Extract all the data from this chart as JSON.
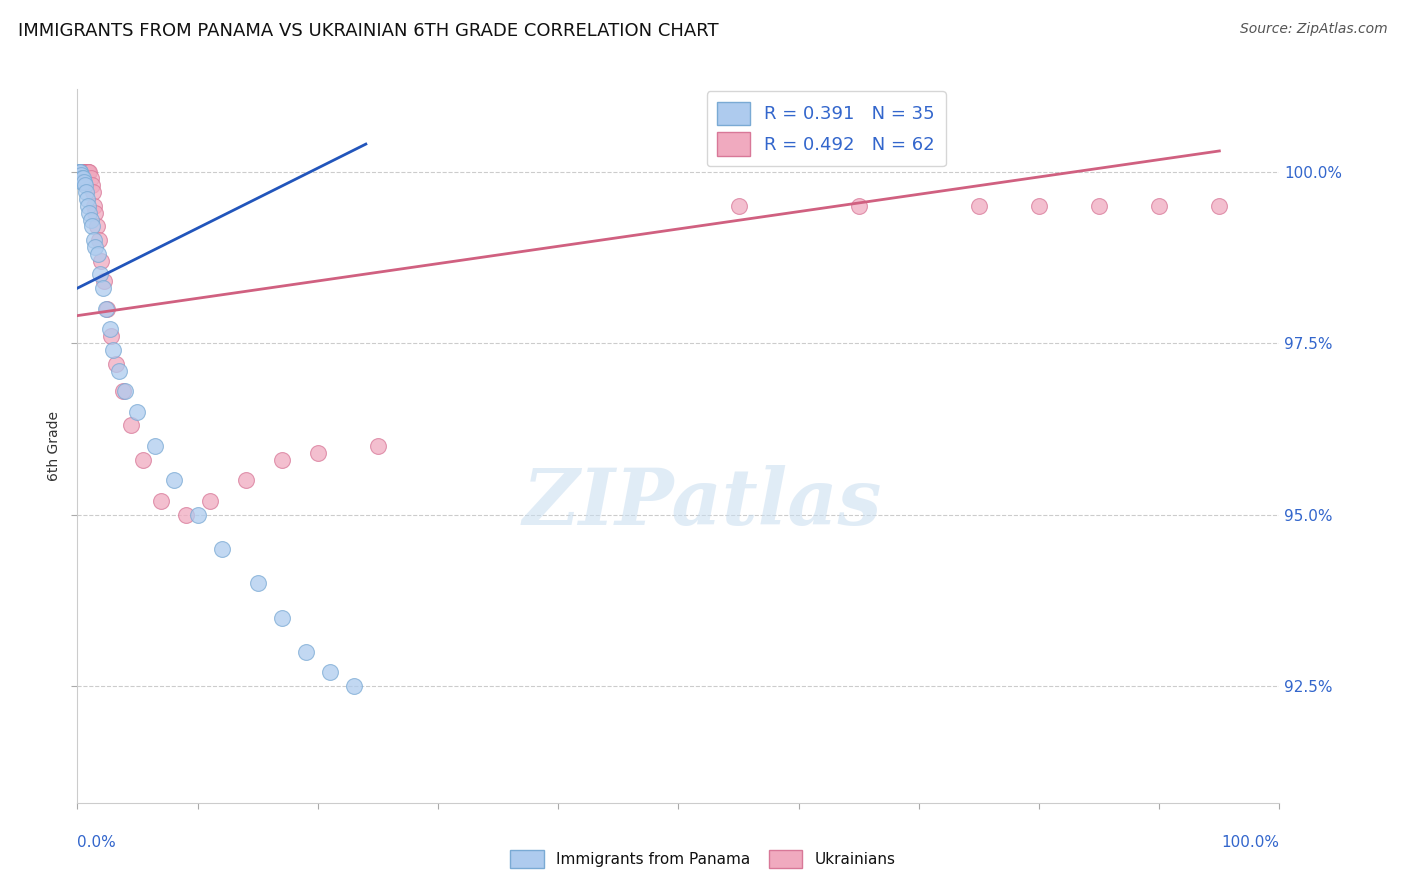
{
  "title": "IMMIGRANTS FROM PANAMA VS UKRAINIAN 6TH GRADE CORRELATION CHART",
  "source": "Source: ZipAtlas.com",
  "ylabel": "6th Grade",
  "ytick_values": [
    92.5,
    95.0,
    97.5,
    100.0
  ],
  "ytick_labels": [
    "92.5%",
    "95.0%",
    "97.5%",
    "100.0%"
  ],
  "xmin": 0.0,
  "xmax": 100.0,
  "ymin": 90.8,
  "ymax": 101.2,
  "legend_label1": "Immigrants from Panama",
  "legend_label2": "Ukrainians",
  "R_blue": 0.391,
  "N_blue": 35,
  "R_pink": 0.492,
  "N_pink": 62,
  "blue_color": "#aecbee",
  "pink_color": "#f0aabf",
  "blue_edge_color": "#7aaad4",
  "pink_edge_color": "#d87898",
  "blue_line_color": "#2255bb",
  "pink_line_color": "#d06080",
  "blue_scatter_x": [
    0.15,
    0.2,
    0.25,
    0.3,
    0.35,
    0.4,
    0.5,
    0.55,
    0.6,
    0.7,
    0.8,
    0.9,
    1.0,
    1.1,
    1.2,
    1.4,
    1.5,
    1.7,
    1.9,
    2.1,
    2.4,
    2.7,
    3.0,
    3.5,
    4.0,
    5.0,
    6.5,
    8.0,
    10.0,
    12.0,
    15.0,
    17.0,
    19.0,
    21.0,
    23.0
  ],
  "blue_scatter_y": [
    100.0,
    100.0,
    100.0,
    99.95,
    99.9,
    99.85,
    99.9,
    99.85,
    99.8,
    99.7,
    99.6,
    99.5,
    99.4,
    99.3,
    99.2,
    99.0,
    98.9,
    98.8,
    98.5,
    98.3,
    98.0,
    97.7,
    97.4,
    97.1,
    96.8,
    96.5,
    96.0,
    95.5,
    95.0,
    94.5,
    94.0,
    93.5,
    93.0,
    92.7,
    92.5
  ],
  "pink_scatter_x": [
    0.1,
    0.15,
    0.2,
    0.25,
    0.3,
    0.35,
    0.4,
    0.5,
    0.55,
    0.6,
    0.65,
    0.7,
    0.75,
    0.8,
    0.85,
    0.9,
    1.0,
    1.1,
    1.2,
    1.3,
    1.4,
    1.5,
    1.6,
    1.8,
    2.0,
    2.2,
    2.5,
    2.8,
    3.2,
    3.8,
    4.5,
    5.5,
    7.0,
    9.0,
    11.0,
    14.0,
    17.0,
    20.0,
    25.0,
    55.0,
    65.0,
    75.0,
    80.0,
    85.0,
    90.0,
    95.0
  ],
  "pink_scatter_y": [
    100.0,
    100.0,
    100.0,
    100.0,
    100.0,
    100.0,
    100.0,
    100.0,
    100.0,
    100.0,
    100.0,
    100.0,
    100.0,
    100.0,
    100.0,
    100.0,
    100.0,
    99.9,
    99.8,
    99.7,
    99.5,
    99.4,
    99.2,
    99.0,
    98.7,
    98.4,
    98.0,
    97.6,
    97.2,
    96.8,
    96.3,
    95.8,
    95.2,
    95.0,
    95.2,
    95.5,
    95.8,
    95.9,
    96.0,
    99.5,
    99.5,
    99.5,
    99.5,
    99.5,
    99.5,
    99.5
  ],
  "blue_line_x": [
    0.0,
    24.0
  ],
  "blue_line_y": [
    98.3,
    100.4
  ],
  "pink_line_x": [
    0.0,
    95.0
  ],
  "pink_line_y": [
    97.9,
    100.3
  ]
}
